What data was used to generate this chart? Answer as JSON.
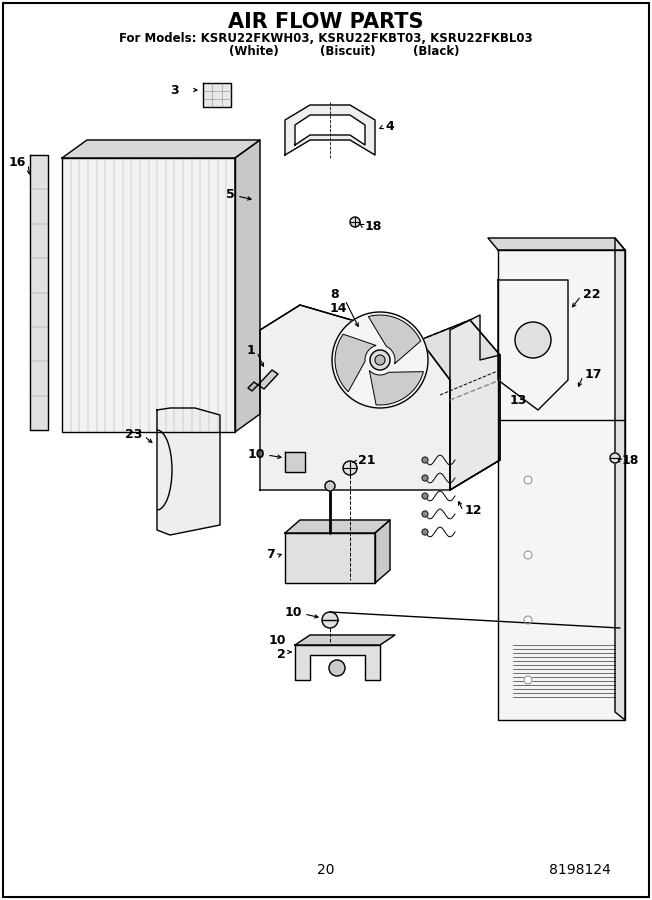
{
  "title": "AIR FLOW PARTS",
  "subtitle_line1": "For Models: KSRU22FKWH03, KSRU22FKBT03, KSRU22FKBL03",
  "subtitle_line2_parts": [
    "(White)",
    "(Biscuit)",
    "(Black)"
  ],
  "page_number": "20",
  "doc_number": "8198124",
  "background_color": "#ffffff",
  "fig_width": 6.52,
  "fig_height": 9.0,
  "dpi": 100
}
